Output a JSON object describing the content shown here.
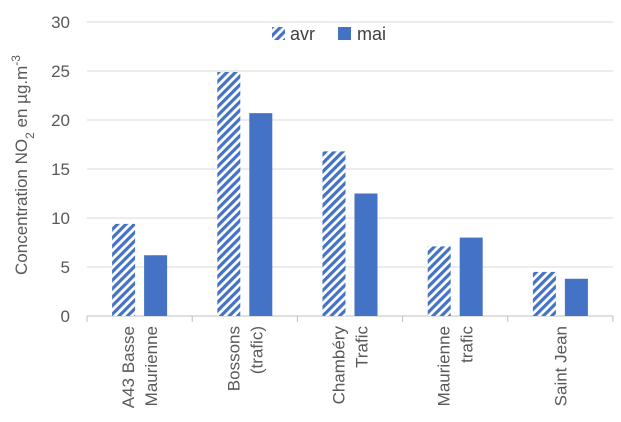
{
  "chart_data": {
    "type": "bar",
    "categories": [
      [
        "A43 Basse",
        "Maurienne"
      ],
      [
        "Bossons",
        "(trafic)"
      ],
      [
        "Chambéry",
        "Trafic"
      ],
      [
        "Maurienne",
        "trafic"
      ],
      [
        "Saint Jean"
      ]
    ],
    "series": [
      {
        "name": "avr",
        "values": [
          9.4,
          24.9,
          16.8,
          7.1,
          4.5
        ],
        "color": "#4472c4",
        "fill": "hatched"
      },
      {
        "name": "mai",
        "values": [
          6.2,
          20.7,
          12.5,
          8.0,
          3.8
        ],
        "color": "#4472c4",
        "fill": "solid"
      }
    ],
    "ylabel": {
      "prefix": "Concentration NO",
      "sub": "2",
      "mid": " en µg.m",
      "sup": "-3"
    },
    "ylim": [
      0,
      30
    ],
    "yticks": [
      0,
      5,
      10,
      15,
      20,
      25,
      30
    ],
    "grid": true,
    "legend": "top-center"
  }
}
